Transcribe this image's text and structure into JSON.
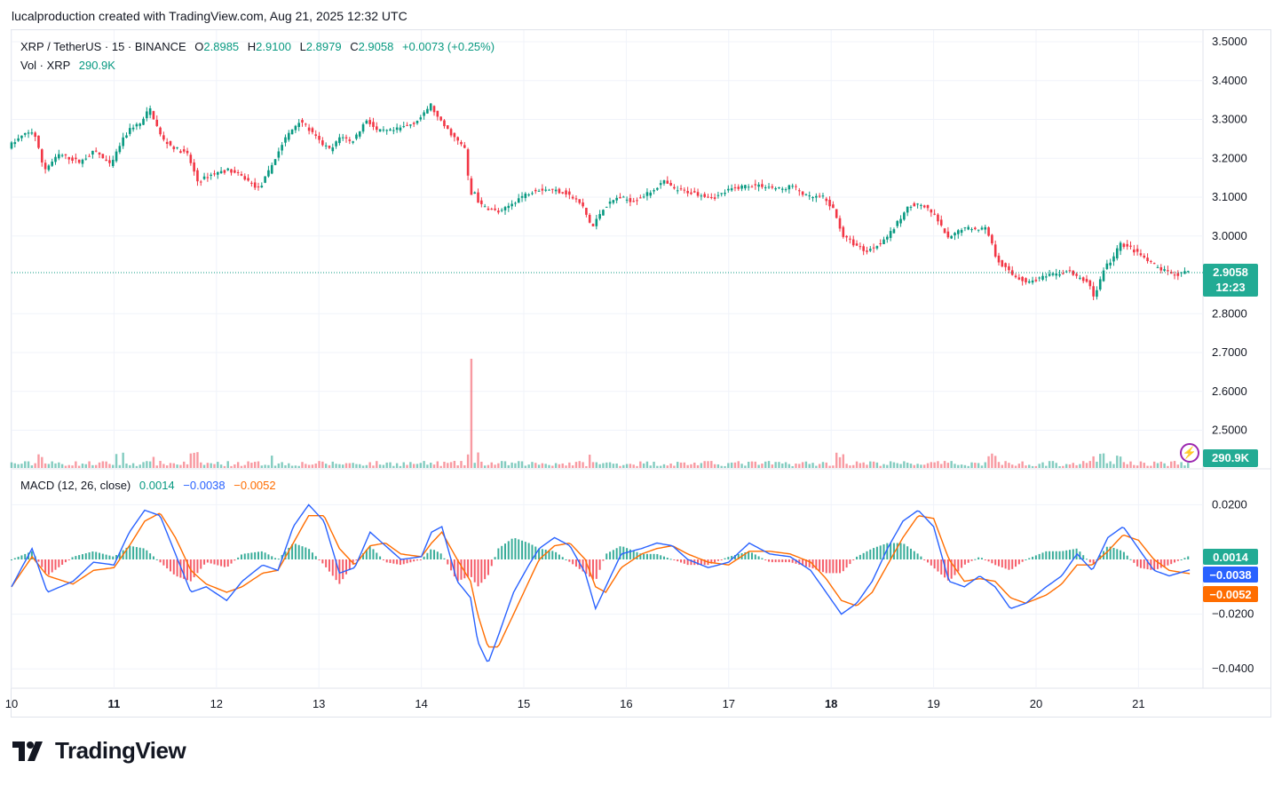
{
  "header": {
    "attribution": "lucalproduction created with TradingView.com, Aug 21, 2025 12:32 UTC"
  },
  "legend": {
    "symbol": "XRP / TetherUS · 15 · BINANCE",
    "o_label": "O",
    "o_value": "2.8985",
    "h_label": "H",
    "h_value": "2.9100",
    "l_label": "L",
    "l_value": "2.8979",
    "c_label": "C",
    "c_value": "2.9058",
    "change": "+0.0073 (+0.25%)",
    "vol_label": "Vol · XRP",
    "vol_value": "290.9K",
    "macd_label": "MACD (12, 26, close)",
    "macd_hist": "0.0014",
    "macd_line": "−0.0038",
    "macd_signal": "−0.0052"
  },
  "badges": {
    "price": "2.9058",
    "countdown": "12:23",
    "volume": "290.9K",
    "hist": "0.0014",
    "macd": "−0.0038",
    "signal": "−0.0052"
  },
  "colors": {
    "up": "#089981",
    "down": "#f23645",
    "macd": "#2962ff",
    "signal": "#ff6d00",
    "grid": "#f0f3fa",
    "badge_up": "#22ab94"
  },
  "logo": {
    "text": "TradingView",
    "icon": "tradingview-logo-icon"
  },
  "flash_icon": "lightning-icon",
  "chart_data": {
    "type": "candlestick",
    "symbol": "XRP / TetherUS",
    "interval": "15",
    "exchange": "BINANCE",
    "x_ticks": [
      "10",
      "11",
      "12",
      "13",
      "14",
      "15",
      "16",
      "17",
      "18",
      "19",
      "20",
      "21"
    ],
    "x_ticks_bold": [
      "11",
      "18"
    ],
    "price_axis": {
      "ticks": [
        "3.5000",
        "3.4000",
        "3.3000",
        "3.2000",
        "3.1000",
        "3.0000",
        "2.8000",
        "2.7000",
        "2.6000",
        "2.5000"
      ],
      "ylim": [
        2.44,
        3.51
      ]
    },
    "macd_axis": {
      "ticks": [
        "0.0200",
        "−0.0200",
        "−0.0400"
      ],
      "ylim": [
        -0.044,
        0.026
      ]
    },
    "last_price": 2.9058,
    "price_path": [
      [
        10.0,
        3.23
      ],
      [
        10.15,
        3.26
      ],
      [
        10.25,
        3.27
      ],
      [
        10.35,
        3.17
      ],
      [
        10.5,
        3.21
      ],
      [
        10.7,
        3.19
      ],
      [
        10.85,
        3.22
      ],
      [
        11.0,
        3.18
      ],
      [
        11.1,
        3.24
      ],
      [
        11.2,
        3.28
      ],
      [
        11.3,
        3.29
      ],
      [
        11.38,
        3.33
      ],
      [
        11.5,
        3.25
      ],
      [
        11.6,
        3.23
      ],
      [
        11.75,
        3.21
      ],
      [
        11.85,
        3.14
      ],
      [
        12.0,
        3.16
      ],
      [
        12.15,
        3.17
      ],
      [
        12.3,
        3.15
      ],
      [
        12.45,
        3.12
      ],
      [
        12.55,
        3.17
      ],
      [
        12.7,
        3.25
      ],
      [
        12.85,
        3.3
      ],
      [
        12.95,
        3.27
      ],
      [
        13.05,
        3.24
      ],
      [
        13.15,
        3.22
      ],
      [
        13.25,
        3.26
      ],
      [
        13.35,
        3.24
      ],
      [
        13.5,
        3.3
      ],
      [
        13.6,
        3.27
      ],
      [
        13.75,
        3.27
      ],
      [
        13.85,
        3.28
      ],
      [
        13.95,
        3.29
      ],
      [
        14.05,
        3.31
      ],
      [
        14.12,
        3.34
      ],
      [
        14.2,
        3.3
      ],
      [
        14.3,
        3.27
      ],
      [
        14.4,
        3.24
      ],
      [
        14.48,
        3.22
      ],
      [
        14.5,
        3.05
      ],
      [
        14.53,
        3.13
      ],
      [
        14.6,
        3.08
      ],
      [
        14.7,
        3.07
      ],
      [
        14.8,
        3.06
      ],
      [
        15.0,
        3.1
      ],
      [
        15.15,
        3.12
      ],
      [
        15.3,
        3.12
      ],
      [
        15.45,
        3.11
      ],
      [
        15.6,
        3.08
      ],
      [
        15.7,
        3.02
      ],
      [
        15.8,
        3.07
      ],
      [
        15.95,
        3.1
      ],
      [
        16.1,
        3.09
      ],
      [
        16.25,
        3.11
      ],
      [
        16.4,
        3.14
      ],
      [
        16.5,
        3.12
      ],
      [
        16.7,
        3.11
      ],
      [
        16.9,
        3.1
      ],
      [
        17.05,
        3.12
      ],
      [
        17.2,
        3.13
      ],
      [
        17.35,
        3.13
      ],
      [
        17.55,
        3.12
      ],
      [
        17.65,
        3.13
      ],
      [
        17.8,
        3.1
      ],
      [
        17.95,
        3.1
      ],
      [
        18.05,
        3.07
      ],
      [
        18.15,
        3.0
      ],
      [
        18.25,
        2.98
      ],
      [
        18.38,
        2.96
      ],
      [
        18.5,
        2.98
      ],
      [
        18.62,
        3.01
      ],
      [
        18.72,
        3.05
      ],
      [
        18.8,
        3.08
      ],
      [
        18.92,
        3.08
      ],
      [
        19.05,
        3.05
      ],
      [
        19.18,
        2.99
      ],
      [
        19.3,
        3.02
      ],
      [
        19.45,
        3.02
      ],
      [
        19.55,
        3.02
      ],
      [
        19.65,
        2.94
      ],
      [
        19.8,
        2.9
      ],
      [
        19.95,
        2.88
      ],
      [
        20.05,
        2.89
      ],
      [
        20.2,
        2.9
      ],
      [
        20.35,
        2.91
      ],
      [
        20.45,
        2.89
      ],
      [
        20.55,
        2.88
      ],
      [
        20.6,
        2.84
      ],
      [
        20.7,
        2.92
      ],
      [
        20.78,
        2.94
      ],
      [
        20.85,
        2.98
      ],
      [
        20.95,
        2.97
      ],
      [
        21.05,
        2.95
      ],
      [
        21.15,
        2.93
      ],
      [
        21.28,
        2.91
      ],
      [
        21.4,
        2.9
      ],
      [
        21.5,
        2.9058
      ]
    ],
    "macd_line": [
      [
        10.0,
        -0.01
      ],
      [
        10.2,
        0.004
      ],
      [
        10.35,
        -0.012
      ],
      [
        10.6,
        -0.008
      ],
      [
        10.8,
        -0.001
      ],
      [
        11.0,
        -0.002
      ],
      [
        11.15,
        0.01
      ],
      [
        11.3,
        0.018
      ],
      [
        11.45,
        0.016
      ],
      [
        11.6,
        0.002
      ],
      [
        11.75,
        -0.012
      ],
      [
        11.9,
        -0.01
      ],
      [
        12.1,
        -0.015
      ],
      [
        12.25,
        -0.008
      ],
      [
        12.45,
        -0.002
      ],
      [
        12.6,
        -0.004
      ],
      [
        12.75,
        0.012
      ],
      [
        12.9,
        0.02
      ],
      [
        13.05,
        0.014
      ],
      [
        13.2,
        -0.005
      ],
      [
        13.35,
        -0.003
      ],
      [
        13.5,
        0.01
      ],
      [
        13.65,
        0.005
      ],
      [
        13.8,
        0.0
      ],
      [
        14.0,
        0.001
      ],
      [
        14.1,
        0.01
      ],
      [
        14.2,
        0.012
      ],
      [
        14.35,
        -0.008
      ],
      [
        14.48,
        -0.014
      ],
      [
        14.55,
        -0.03
      ],
      [
        14.65,
        -0.038
      ],
      [
        14.75,
        -0.028
      ],
      [
        14.9,
        -0.012
      ],
      [
        15.05,
        -0.002
      ],
      [
        15.15,
        0.004
      ],
      [
        15.3,
        0.008
      ],
      [
        15.45,
        0.005
      ],
      [
        15.6,
        -0.005
      ],
      [
        15.7,
        -0.018
      ],
      [
        15.8,
        -0.01
      ],
      [
        15.95,
        0.002
      ],
      [
        16.15,
        0.004
      ],
      [
        16.3,
        0.006
      ],
      [
        16.45,
        0.005
      ],
      [
        16.6,
        0.0
      ],
      [
        16.8,
        -0.003
      ],
      [
        17.0,
        -0.001
      ],
      [
        17.2,
        0.006
      ],
      [
        17.4,
        0.002
      ],
      [
        17.6,
        0.001
      ],
      [
        17.8,
        -0.004
      ],
      [
        17.95,
        -0.012
      ],
      [
        18.1,
        -0.02
      ],
      [
        18.25,
        -0.016
      ],
      [
        18.4,
        -0.008
      ],
      [
        18.55,
        0.004
      ],
      [
        18.7,
        0.014
      ],
      [
        18.85,
        0.018
      ],
      [
        19.0,
        0.012
      ],
      [
        19.15,
        -0.008
      ],
      [
        19.3,
        -0.01
      ],
      [
        19.45,
        -0.006
      ],
      [
        19.6,
        -0.01
      ],
      [
        19.75,
        -0.018
      ],
      [
        19.9,
        -0.016
      ],
      [
        20.1,
        -0.01
      ],
      [
        20.25,
        -0.006
      ],
      [
        20.4,
        0.002
      ],
      [
        20.55,
        -0.004
      ],
      [
        20.7,
        0.008
      ],
      [
        20.85,
        0.012
      ],
      [
        21.0,
        0.004
      ],
      [
        21.15,
        -0.004
      ],
      [
        21.3,
        -0.006
      ],
      [
        21.5,
        -0.0038
      ]
    ],
    "signal_line": [
      [
        10.0,
        -0.01
      ],
      [
        10.2,
        0.001
      ],
      [
        10.35,
        -0.006
      ],
      [
        10.6,
        -0.009
      ],
      [
        10.8,
        -0.004
      ],
      [
        11.0,
        -0.003
      ],
      [
        11.15,
        0.005
      ],
      [
        11.3,
        0.014
      ],
      [
        11.45,
        0.017
      ],
      [
        11.6,
        0.008
      ],
      [
        11.75,
        -0.004
      ],
      [
        11.9,
        -0.009
      ],
      [
        12.1,
        -0.012
      ],
      [
        12.25,
        -0.01
      ],
      [
        12.45,
        -0.005
      ],
      [
        12.6,
        -0.004
      ],
      [
        12.75,
        0.006
      ],
      [
        12.9,
        0.016
      ],
      [
        13.05,
        0.016
      ],
      [
        13.2,
        0.004
      ],
      [
        13.35,
        -0.002
      ],
      [
        13.5,
        0.005
      ],
      [
        13.65,
        0.006
      ],
      [
        13.8,
        0.002
      ],
      [
        14.0,
        0.001
      ],
      [
        14.1,
        0.006
      ],
      [
        14.2,
        0.01
      ],
      [
        14.35,
        0.0
      ],
      [
        14.48,
        -0.008
      ],
      [
        14.55,
        -0.02
      ],
      [
        14.65,
        -0.032
      ],
      [
        14.75,
        -0.032
      ],
      [
        14.9,
        -0.02
      ],
      [
        15.05,
        -0.008
      ],
      [
        15.15,
        0.0
      ],
      [
        15.3,
        0.005
      ],
      [
        15.45,
        0.006
      ],
      [
        15.6,
        0.0
      ],
      [
        15.7,
        -0.01
      ],
      [
        15.8,
        -0.012
      ],
      [
        15.95,
        -0.003
      ],
      [
        16.15,
        0.002
      ],
      [
        16.3,
        0.004
      ],
      [
        16.45,
        0.005
      ],
      [
        16.6,
        0.002
      ],
      [
        16.8,
        -0.001
      ],
      [
        17.0,
        -0.002
      ],
      [
        17.2,
        0.003
      ],
      [
        17.4,
        0.003
      ],
      [
        17.6,
        0.002
      ],
      [
        17.8,
        -0.001
      ],
      [
        17.95,
        -0.007
      ],
      [
        18.1,
        -0.015
      ],
      [
        18.25,
        -0.017
      ],
      [
        18.4,
        -0.012
      ],
      [
        18.55,
        -0.002
      ],
      [
        18.7,
        0.008
      ],
      [
        18.85,
        0.016
      ],
      [
        19.0,
        0.015
      ],
      [
        19.15,
        0.0
      ],
      [
        19.3,
        -0.008
      ],
      [
        19.45,
        -0.007
      ],
      [
        19.6,
        -0.008
      ],
      [
        19.75,
        -0.014
      ],
      [
        19.9,
        -0.016
      ],
      [
        20.1,
        -0.013
      ],
      [
        20.25,
        -0.009
      ],
      [
        20.4,
        -0.002
      ],
      [
        20.55,
        -0.002
      ],
      [
        20.7,
        0.003
      ],
      [
        20.85,
        0.009
      ],
      [
        21.0,
        0.007
      ],
      [
        21.15,
        0.0
      ],
      [
        21.3,
        -0.004
      ],
      [
        21.5,
        -0.0052
      ]
    ]
  }
}
